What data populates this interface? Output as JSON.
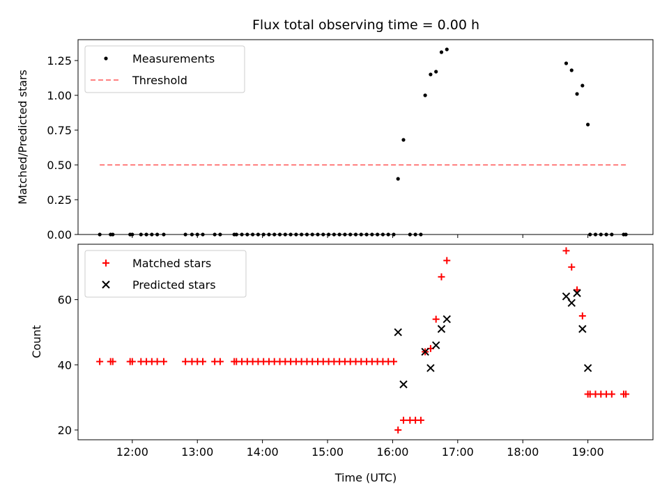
{
  "chart_data": [
    {
      "type": "scatter",
      "title": "Flux total observing time = 0.00 h",
      "xlabel": "",
      "ylabel": "Matched/Predicted stars",
      "xlim": [
        "11:10",
        "20:00"
      ],
      "ylim": [
        0,
        1.4
      ],
      "yticks": [
        "0.00",
        "0.25",
        "0.50",
        "0.75",
        "1.00",
        "1.25"
      ],
      "legend_position": "top-left",
      "series": [
        {
          "name": "Measurements",
          "marker": "dot",
          "color": "#000000",
          "points": [
            [
              "11:30",
              0
            ],
            [
              "11:40",
              0
            ],
            [
              "11:42",
              0
            ],
            [
              "11:58",
              0
            ],
            [
              "12:00",
              0
            ],
            [
              "12:08",
              0
            ],
            [
              "12:13",
              0
            ],
            [
              "12:18",
              0
            ],
            [
              "12:23",
              0
            ],
            [
              "12:29",
              0
            ],
            [
              "12:49",
              0
            ],
            [
              "12:55",
              0
            ],
            [
              "13:00",
              0
            ],
            [
              "13:05",
              0
            ],
            [
              "13:16",
              0
            ],
            [
              "13:21",
              0
            ],
            [
              "13:34",
              0
            ],
            [
              "13:36",
              0
            ],
            [
              "13:41",
              0
            ],
            [
              "13:46",
              0
            ],
            [
              "13:51",
              0
            ],
            [
              "13:56",
              0
            ],
            [
              "14:01",
              0
            ],
            [
              "14:06",
              0
            ],
            [
              "14:11",
              0
            ],
            [
              "14:16",
              0
            ],
            [
              "14:21",
              0
            ],
            [
              "14:26",
              0
            ],
            [
              "14:31",
              0
            ],
            [
              "14:36",
              0
            ],
            [
              "14:41",
              0
            ],
            [
              "14:46",
              0
            ],
            [
              "14:51",
              0
            ],
            [
              "14:56",
              0
            ],
            [
              "15:01",
              0
            ],
            [
              "15:06",
              0
            ],
            [
              "15:11",
              0
            ],
            [
              "15:16",
              0
            ],
            [
              "15:21",
              0
            ],
            [
              "15:26",
              0
            ],
            [
              "15:31",
              0
            ],
            [
              "15:36",
              0
            ],
            [
              "15:41",
              0
            ],
            [
              "15:46",
              0
            ],
            [
              "15:51",
              0
            ],
            [
              "15:56",
              0
            ],
            [
              "16:01",
              0
            ],
            [
              "16:05",
              0.4
            ],
            [
              "16:10",
              0.68
            ],
            [
              "16:16",
              0
            ],
            [
              "16:21",
              0
            ],
            [
              "16:26",
              0
            ],
            [
              "16:30",
              1.0
            ],
            [
              "16:35",
              1.15
            ],
            [
              "16:40",
              1.17
            ],
            [
              "16:45",
              1.31
            ],
            [
              "16:50",
              1.33
            ],
            [
              "18:40",
              1.23
            ],
            [
              "18:45",
              1.18
            ],
            [
              "18:50",
              1.01
            ],
            [
              "18:55",
              1.07
            ],
            [
              "19:00",
              0.79
            ],
            [
              "19:02",
              0
            ],
            [
              "19:07",
              0
            ],
            [
              "19:12",
              0
            ],
            [
              "19:17",
              0
            ],
            [
              "19:22",
              0
            ],
            [
              "19:33",
              0
            ],
            [
              "19:35",
              0
            ]
          ]
        },
        {
          "name": "Threshold",
          "marker": "dashed-line",
          "color": "#ff8080",
          "points": [
            [
              "11:30",
              0.5
            ],
            [
              "19:35",
              0.5
            ]
          ]
        }
      ]
    },
    {
      "type": "scatter",
      "title": "",
      "xlabel": "Time (UTC)",
      "ylabel": "Count",
      "xlim": [
        "11:10",
        "20:00"
      ],
      "ylim": [
        17,
        77
      ],
      "yticks": [
        "20",
        "40",
        "60"
      ],
      "xticks": [
        "12:00",
        "13:00",
        "14:00",
        "15:00",
        "16:00",
        "17:00",
        "18:00",
        "19:00"
      ],
      "legend_position": "top-left",
      "series": [
        {
          "name": "Matched stars",
          "marker": "plus",
          "color": "#ff0000",
          "points": [
            [
              "11:30",
              41
            ],
            [
              "11:40",
              41
            ],
            [
              "11:42",
              41
            ],
            [
              "11:58",
              41
            ],
            [
              "12:00",
              41
            ],
            [
              "12:08",
              41
            ],
            [
              "12:13",
              41
            ],
            [
              "12:18",
              41
            ],
            [
              "12:23",
              41
            ],
            [
              "12:29",
              41
            ],
            [
              "12:49",
              41
            ],
            [
              "12:55",
              41
            ],
            [
              "13:00",
              41
            ],
            [
              "13:05",
              41
            ],
            [
              "13:16",
              41
            ],
            [
              "13:21",
              41
            ],
            [
              "13:34",
              41
            ],
            [
              "13:36",
              41
            ],
            [
              "13:41",
              41
            ],
            [
              "13:46",
              41
            ],
            [
              "13:51",
              41
            ],
            [
              "13:56",
              41
            ],
            [
              "14:01",
              41
            ],
            [
              "14:06",
              41
            ],
            [
              "14:11",
              41
            ],
            [
              "14:16",
              41
            ],
            [
              "14:21",
              41
            ],
            [
              "14:26",
              41
            ],
            [
              "14:31",
              41
            ],
            [
              "14:36",
              41
            ],
            [
              "14:41",
              41
            ],
            [
              "14:46",
              41
            ],
            [
              "14:51",
              41
            ],
            [
              "14:56",
              41
            ],
            [
              "15:01",
              41
            ],
            [
              "15:06",
              41
            ],
            [
              "15:11",
              41
            ],
            [
              "15:16",
              41
            ],
            [
              "15:21",
              41
            ],
            [
              "15:26",
              41
            ],
            [
              "15:31",
              41
            ],
            [
              "15:36",
              41
            ],
            [
              "15:41",
              41
            ],
            [
              "15:46",
              41
            ],
            [
              "15:51",
              41
            ],
            [
              "15:56",
              41
            ],
            [
              "16:01",
              41
            ],
            [
              "16:05",
              20
            ],
            [
              "16:10",
              23
            ],
            [
              "16:16",
              23
            ],
            [
              "16:21",
              23
            ],
            [
              "16:26",
              23
            ],
            [
              "16:30",
              44
            ],
            [
              "16:35",
              45
            ],
            [
              "16:40",
              54
            ],
            [
              "16:45",
              67
            ],
            [
              "16:50",
              72
            ],
            [
              "18:40",
              75
            ],
            [
              "18:45",
              70
            ],
            [
              "18:50",
              63
            ],
            [
              "18:55",
              55
            ],
            [
              "19:00",
              31
            ],
            [
              "19:02",
              31
            ],
            [
              "19:07",
              31
            ],
            [
              "19:12",
              31
            ],
            [
              "19:17",
              31
            ],
            [
              "19:22",
              31
            ],
            [
              "19:33",
              31
            ],
            [
              "19:35",
              31
            ]
          ]
        },
        {
          "name": "Predicted stars",
          "marker": "x",
          "color": "#000000",
          "points": [
            [
              "16:05",
              50
            ],
            [
              "16:10",
              34
            ],
            [
              "16:30",
              44
            ],
            [
              "16:35",
              39
            ],
            [
              "16:40",
              46
            ],
            [
              "16:45",
              51
            ],
            [
              "16:50",
              54
            ],
            [
              "18:40",
              61
            ],
            [
              "18:45",
              59
            ],
            [
              "18:50",
              62
            ],
            [
              "18:55",
              51
            ],
            [
              "19:00",
              39
            ]
          ]
        }
      ]
    }
  ]
}
